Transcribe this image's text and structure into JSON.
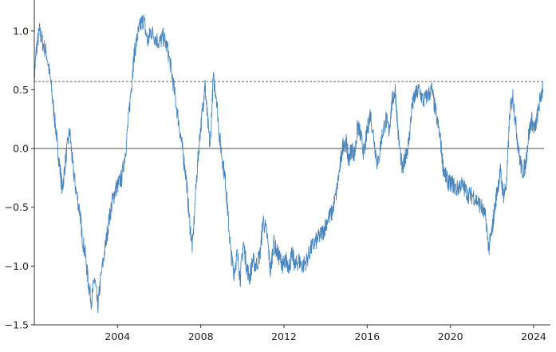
{
  "chart_data": {
    "type": "line",
    "title": "",
    "xlabel": "",
    "ylabel": "",
    "xlim": [
      2000.0,
      2024.5
    ],
    "ylim": [
      -1.5,
      1.25
    ],
    "grid": false,
    "legend": "none",
    "x_ticks": [
      2004,
      2008,
      2012,
      2016,
      2020,
      2024
    ],
    "x_tick_labels": [
      "2004",
      "2008",
      "2012",
      "2016",
      "2020",
      "2024"
    ],
    "y_ticks": [
      1.0,
      0.5,
      0.0,
      -0.5,
      -1.0,
      -1.5
    ],
    "y_tick_labels": [
      "1.0",
      "0.5",
      "0.0",
      "−0.5",
      "−1.0",
      "−1.5"
    ],
    "reference_lines": [
      {
        "y": 0.0,
        "style": "solid",
        "color": "#333333"
      },
      {
        "y": 0.57,
        "style": "dashed",
        "color": "#333333"
      }
    ],
    "series": [
      {
        "color": "#4a86bd",
        "x": [
          2000.0,
          2000.1,
          2000.25,
          2000.4,
          2000.6,
          2000.8,
          2000.95,
          2001.1,
          2001.25,
          2001.35,
          2001.5,
          2001.7,
          2001.85,
          2002.0,
          2002.2,
          2002.3,
          2002.45,
          2002.6,
          2002.75,
          2002.9,
          2003.05,
          2003.2,
          2003.4,
          2003.6,
          2003.75,
          2003.9,
          2004.05,
          2004.2,
          2004.4,
          2004.55,
          2004.7,
          2004.8,
          2004.95,
          2005.1,
          2005.25,
          2005.45,
          2005.6,
          2005.8,
          2006.0,
          2006.2,
          2006.4,
          2006.6,
          2006.8,
          2007.0,
          2007.15,
          2007.3,
          2007.45,
          2007.6,
          2007.8,
          2007.95,
          2008.1,
          2008.2,
          2008.3,
          2008.45,
          2008.6,
          2008.75,
          2008.9,
          2009.05,
          2009.2,
          2009.3,
          2009.45,
          2009.6,
          2009.75,
          2009.9,
          2010.05,
          2010.2,
          2010.35,
          2010.5,
          2010.65,
          2010.85,
          2011.0,
          2011.2,
          2011.35,
          2011.5,
          2011.7,
          2011.85,
          2012.0,
          2012.1,
          2012.25,
          2012.4,
          2012.55,
          2012.7,
          2012.9,
          2013.1,
          2013.3,
          2013.5,
          2013.7,
          2013.9,
          2014.1,
          2014.3,
          2014.5,
          2014.7,
          2014.85,
          2015.0,
          2015.1,
          2015.25,
          2015.4,
          2015.55,
          2015.7,
          2015.85,
          2016.0,
          2016.15,
          2016.35,
          2016.5,
          2016.7,
          2016.9,
          2017.05,
          2017.2,
          2017.35,
          2017.5,
          2017.7,
          2017.85,
          2018.0,
          2018.15,
          2018.3,
          2018.5,
          2018.7,
          2018.9,
          2019.1,
          2019.3,
          2019.5,
          2019.65,
          2019.8,
          2019.95,
          2020.1,
          2020.3,
          2020.5,
          2020.7,
          2020.9,
          2021.1,
          2021.3,
          2021.5,
          2021.7,
          2021.85,
          2022.0,
          2022.1,
          2022.25,
          2022.4,
          2022.55,
          2022.7,
          2022.85,
          2023.0,
          2023.15,
          2023.3,
          2023.45,
          2023.6,
          2023.75,
          2023.9,
          2024.05,
          2024.2,
          2024.35,
          2024.45
        ],
        "y": [
          0.6,
          0.85,
          1.0,
          0.9,
          0.8,
          0.55,
          0.3,
          0.05,
          -0.2,
          -0.35,
          -0.1,
          0.15,
          -0.15,
          -0.35,
          -0.55,
          -0.75,
          -0.9,
          -1.15,
          -1.3,
          -1.1,
          -1.35,
          -1.1,
          -0.85,
          -0.6,
          -0.45,
          -0.35,
          -0.3,
          -0.25,
          0.0,
          0.3,
          0.6,
          0.8,
          0.95,
          1.05,
          1.1,
          0.9,
          1.0,
          0.95,
          0.9,
          0.95,
          0.85,
          0.65,
          0.4,
          0.15,
          -0.05,
          -0.25,
          -0.6,
          -0.85,
          -0.25,
          0.1,
          0.35,
          0.55,
          0.3,
          0.0,
          0.6,
          0.45,
          0.1,
          -0.1,
          -0.3,
          -0.55,
          -0.9,
          -1.05,
          -0.9,
          -1.1,
          -0.8,
          -1.0,
          -1.1,
          -0.95,
          -1.0,
          -0.9,
          -0.6,
          -0.75,
          -1.05,
          -0.8,
          -0.9,
          -0.95,
          -1.0,
          -0.95,
          -1.0,
          -0.9,
          -1.0,
          -0.95,
          -1.0,
          -0.95,
          -0.85,
          -0.8,
          -0.75,
          -0.7,
          -0.6,
          -0.55,
          -0.4,
          -0.15,
          0.05,
          0.05,
          -0.1,
          0.0,
          -0.05,
          0.2,
          0.1,
          -0.05,
          0.15,
          0.3,
          0.05,
          -0.15,
          0.1,
          0.25,
          0.15,
          0.4,
          0.5,
          0.1,
          -0.2,
          -0.05,
          0.05,
          0.35,
          0.45,
          0.5,
          0.4,
          0.45,
          0.5,
          0.3,
          0.1,
          -0.15,
          -0.25,
          -0.3,
          -0.3,
          -0.35,
          -0.3,
          -0.35,
          -0.4,
          -0.4,
          -0.45,
          -0.5,
          -0.6,
          -0.85,
          -0.7,
          -0.55,
          -0.35,
          -0.2,
          -0.4,
          -0.3,
          0.3,
          0.45,
          0.2,
          -0.05,
          -0.2,
          -0.15,
          0.1,
          0.25,
          0.15,
          0.3,
          0.45,
          0.5
        ]
      }
    ]
  }
}
